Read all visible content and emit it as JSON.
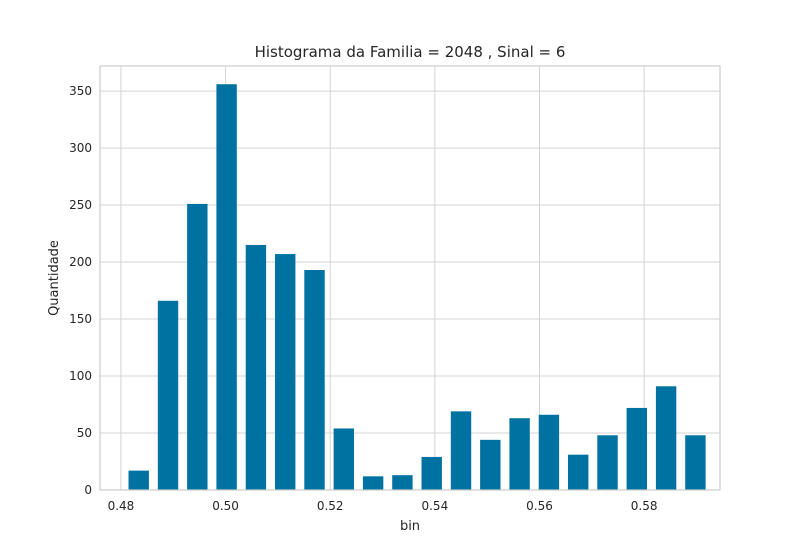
{
  "chart_data": {
    "type": "bar",
    "title": "Histograma da Familia = 2048 , Sinal = 6",
    "xlabel": "bin",
    "ylabel": "Quantidade",
    "xlim": [
      0.476,
      0.5945
    ],
    "ylim": [
      0,
      372
    ],
    "grid": true,
    "bar_color": "#0072A2",
    "bar_width": 0.0039,
    "x_ticks": [
      "0.48",
      "0.50",
      "0.52",
      "0.54",
      "0.56",
      "0.58"
    ],
    "y_ticks": [
      "0",
      "50",
      "100",
      "150",
      "200",
      "250",
      "300",
      "350"
    ],
    "bins": [
      0.4834,
      0.489,
      0.4946,
      0.5002,
      0.5058,
      0.5114,
      0.517,
      0.5226,
      0.5282,
      0.5338,
      0.5394,
      0.545,
      0.5506,
      0.5562,
      0.5618,
      0.5674,
      0.573,
      0.5786,
      0.5842,
      0.5898
    ],
    "values": [
      17,
      166,
      251,
      356,
      215,
      207,
      193,
      54,
      12,
      13,
      29,
      69,
      44,
      63,
      66,
      31,
      48,
      72,
      91,
      48
    ]
  }
}
